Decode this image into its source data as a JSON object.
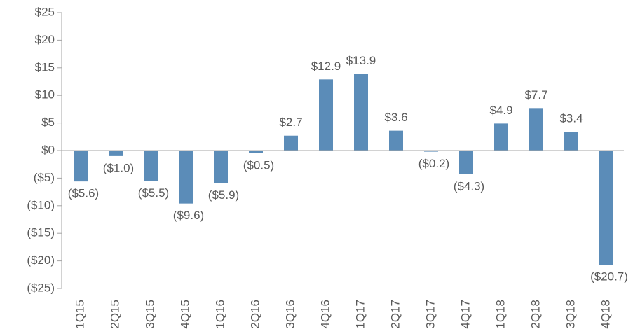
{
  "chart_data": {
    "type": "bar",
    "categories": [
      "1Q15",
      "2Q15",
      "3Q15",
      "4Q15",
      "1Q16",
      "2Q16",
      "3Q16",
      "4Q16",
      "1Q17",
      "2Q17",
      "3Q17",
      "4Q17",
      "1Q18",
      "2Q18",
      "3Q18",
      "4Q18"
    ],
    "values": [
      -5.6,
      -1.0,
      -5.5,
      -9.6,
      -5.9,
      -0.5,
      2.7,
      12.9,
      13.9,
      3.6,
      -0.2,
      -4.3,
      4.9,
      7.7,
      3.4,
      -20.7
    ],
    "value_labels": [
      "($5.6)",
      "($1.0)",
      "($5.5)",
      "($9.6)",
      "($5.9)",
      "($0.5)",
      "$2.7",
      "$12.9",
      "$13.9",
      "$3.6",
      "($0.2)",
      "($4.3)",
      "$4.9",
      "$7.7",
      "$3.4",
      "($20.7)"
    ],
    "color": "#5b8cb8",
    "ylim": [
      -25,
      25
    ],
    "yticks": [
      {
        "value": -25,
        "label": "($25)"
      },
      {
        "value": -20,
        "label": "($20)"
      },
      {
        "value": -15,
        "label": "($15)"
      },
      {
        "value": -10,
        "label": "($10)"
      },
      {
        "value": -5,
        "label": "($5)"
      },
      {
        "value": 0,
        "label": "$0"
      },
      {
        "value": 5,
        "label": "$5"
      },
      {
        "value": 10,
        "label": "$10"
      },
      {
        "value": 15,
        "label": "$15"
      },
      {
        "value": 20,
        "label": "$20"
      },
      {
        "value": 25,
        "label": "$25"
      }
    ]
  }
}
